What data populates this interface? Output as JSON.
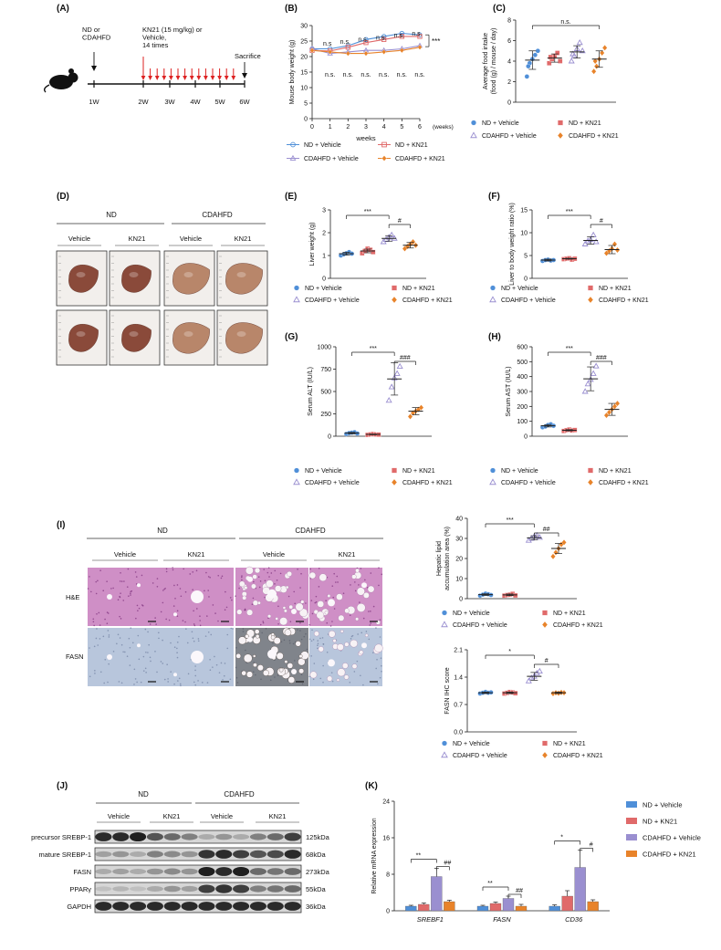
{
  "panel_labels": [
    "(A)",
    "(B)",
    "(C)",
    "(D)",
    "(E)",
    "(F)",
    "(G)",
    "(H)",
    "(I)",
    "(J)",
    "(K)"
  ],
  "colors": {
    "nd_vehicle": "#4f8fd8",
    "nd_kn21": "#e06a6a",
    "cdahfd_vehicle": "#9a8fd0",
    "cdahfd_kn21": "#e8832a",
    "liver_dark": "#8a4a3a",
    "liver_light": "#b8866a",
    "he_pink": "#cf8fc6",
    "ihc_blue": "#b8c6dc"
  },
  "legend": {
    "nd_vehicle": "ND + Vehicle",
    "nd_kn21": "ND + KN21",
    "cdahfd_vehicle": "CDAHFD + Vehicle",
    "cdahfd_kn21": "CDAHFD + KN21"
  },
  "panel_a": {
    "start_label": "ND or\nCDAHFD",
    "treatment_label": "KN21 (15 mg/kg) or\nVehicle,\n14 times",
    "end_label": "Sacrifice",
    "week_labels": [
      "1W",
      "2W",
      "3W",
      "4W",
      "5W",
      "6W"
    ],
    "mouse_icon": "mouse-icon"
  },
  "panel_d": {
    "group_labels": [
      "ND",
      "CDAHFD"
    ],
    "sub_labels": [
      "Vehicle",
      "KN21",
      "Vehicle",
      "KN21"
    ]
  },
  "panel_i": {
    "group_labels": [
      "ND",
      "CDAHFD"
    ],
    "sub_labels": [
      "Vehicle",
      "KN21",
      "Vehicle",
      "KN21"
    ],
    "row_labels": [
      "H&E",
      "FASN"
    ]
  },
  "panel_j": {
    "group_labels": [
      "ND",
      "CDAHFD"
    ],
    "sub_labels": [
      "Vehicle",
      "KN21",
      "Vehicle",
      "KN21"
    ],
    "rows": [
      {
        "name": "precursor SREBP-1",
        "size": "125kDa",
        "intensity": [
          0.9,
          0.9,
          0.95,
          0.7,
          0.6,
          0.5,
          0.3,
          0.4,
          0.3,
          0.5,
          0.6,
          0.8
        ]
      },
      {
        "name": "mature SREBP-1",
        "size": "68kDa",
        "intensity": [
          0.35,
          0.4,
          0.3,
          0.5,
          0.45,
          0.4,
          0.85,
          0.9,
          0.8,
          0.7,
          0.75,
          0.9
        ]
      },
      {
        "name": "FASN",
        "size": "273kDa",
        "intensity": [
          0.3,
          0.35,
          0.3,
          0.4,
          0.45,
          0.4,
          0.95,
          0.9,
          0.95,
          0.6,
          0.55,
          0.6
        ]
      },
      {
        "name": "PPARγ",
        "size": "55kDa",
        "intensity": [
          0.2,
          0.25,
          0.2,
          0.3,
          0.4,
          0.35,
          0.8,
          0.85,
          0.8,
          0.5,
          0.55,
          0.6
        ]
      },
      {
        "name": "GAPDH",
        "size": "36kDa",
        "intensity": [
          0.9,
          0.9,
          0.9,
          0.9,
          0.9,
          0.9,
          0.9,
          0.9,
          0.9,
          0.9,
          0.9,
          0.9
        ]
      }
    ]
  },
  "chart_data": [
    {
      "id": "B",
      "type": "line",
      "ylabel": "Mouse body weight (g)",
      "xlabel": "weeks",
      "x_unit": "(weeks)",
      "x": [
        0,
        1,
        2,
        3,
        4,
        5,
        6
      ],
      "xlim": [
        0,
        6
      ],
      "ylim": [
        0,
        30
      ],
      "yticks": [
        0,
        5,
        10,
        15,
        20,
        25,
        30
      ],
      "series": [
        {
          "name": "ND + Vehicle",
          "values": [
            22.5,
            22.5,
            23.5,
            25.5,
            26.5,
            27.5,
            27.0
          ]
        },
        {
          "name": "ND + KN21",
          "values": [
            22.0,
            21.8,
            23.0,
            24.5,
            25.5,
            26.5,
            26.5
          ]
        },
        {
          "name": "CDAHFD + Vehicle",
          "values": [
            22.5,
            21.0,
            21.5,
            22.0,
            22.0,
            22.5,
            23.5
          ]
        },
        {
          "name": "CDAHFD + KN21",
          "values": [
            22.0,
            21.5,
            21.0,
            21.0,
            21.5,
            22.0,
            23.0
          ]
        }
      ],
      "annotations_top": [
        "n.s",
        "n.s.",
        "n.s.",
        "n.s.",
        "n.s.",
        "n.s."
      ],
      "annotations_bottom": [
        "n.s.",
        "n.s.",
        "n.s.",
        "n.s.",
        "n.s.",
        "n.s."
      ],
      "significance": "***"
    },
    {
      "id": "C",
      "type": "scatter",
      "ylabel": "Average food intake\n(food (g) / mouse / day)",
      "ylim": [
        0,
        8
      ],
      "yticks": [
        0,
        2,
        4,
        6,
        8
      ],
      "groups": [
        {
          "name": "ND + Vehicle",
          "points": [
            2.5,
            3.8,
            4.2,
            4.6,
            5.0,
            3.5
          ],
          "mean": 4.1,
          "sd": 0.9
        },
        {
          "name": "ND + KN21",
          "points": [
            3.8,
            4.2,
            4.5,
            4.8,
            4.0,
            4.4
          ],
          "mean": 4.3,
          "sd": 0.4
        },
        {
          "name": "CDAHFD + Vehicle",
          "points": [
            4.0,
            4.5,
            5.2,
            5.8,
            5.0,
            4.7
          ],
          "mean": 4.9,
          "sd": 0.6
        },
        {
          "name": "CDAHFD + KN21",
          "points": [
            3.0,
            3.5,
            4.2,
            4.8,
            5.3,
            4.0
          ],
          "mean": 4.2,
          "sd": 0.8
        }
      ],
      "brackets": [
        {
          "from": 0,
          "to": 3,
          "label": "n.s."
        }
      ]
    },
    {
      "id": "E",
      "type": "scatter",
      "ylabel": "Liver weight (g)",
      "ylim": [
        0,
        3
      ],
      "yticks": [
        0,
        1,
        2,
        3
      ],
      "groups": [
        {
          "name": "ND + Vehicle",
          "points": [
            1.0,
            1.05,
            1.1,
            1.15,
            1.08
          ],
          "mean": 1.08,
          "sd": 0.06
        },
        {
          "name": "ND + KN21",
          "points": [
            1.1,
            1.2,
            1.3,
            1.25,
            1.15
          ],
          "mean": 1.2,
          "sd": 0.08
        },
        {
          "name": "CDAHFD + Vehicle",
          "points": [
            1.6,
            1.7,
            1.8,
            1.9,
            1.75
          ],
          "mean": 1.75,
          "sd": 0.12
        },
        {
          "name": "CDAHFD + KN21",
          "points": [
            1.3,
            1.4,
            1.5,
            1.6,
            1.45
          ],
          "mean": 1.45,
          "sd": 0.12
        }
      ],
      "brackets": [
        {
          "from": 0,
          "to": 2,
          "label": "***"
        },
        {
          "from": 2,
          "to": 3,
          "label": "#"
        }
      ]
    },
    {
      "id": "F",
      "type": "scatter",
      "ylabel": "Liver to body weight ratio (%)",
      "ylim": [
        0,
        15
      ],
      "yticks": [
        0,
        5,
        10,
        15
      ],
      "groups": [
        {
          "name": "ND + Vehicle",
          "points": [
            3.8,
            4.0,
            4.1,
            3.9,
            4.0
          ],
          "mean": 4.0,
          "sd": 0.2
        },
        {
          "name": "ND + KN21",
          "points": [
            4.2,
            4.3,
            4.4,
            4.1,
            4.3
          ],
          "mean": 4.3,
          "sd": 0.1
        },
        {
          "name": "CDAHFD + Vehicle",
          "points": [
            7.5,
            8.2,
            8.5,
            9.5,
            8.0
          ],
          "mean": 8.3,
          "sd": 0.8
        },
        {
          "name": "CDAHFD + KN21",
          "points": [
            5.5,
            6.0,
            6.5,
            7.5,
            6.2
          ],
          "mean": 6.3,
          "sd": 0.9
        }
      ],
      "brackets": [
        {
          "from": 0,
          "to": 2,
          "label": "***"
        },
        {
          "from": 2,
          "to": 3,
          "label": "#"
        }
      ]
    },
    {
      "id": "G",
      "type": "scatter",
      "ylabel": "Serum ALT (IU/L)",
      "ylim": [
        0,
        1000
      ],
      "yticks": [
        0,
        250,
        500,
        750,
        1000
      ],
      "groups": [
        {
          "name": "ND + Vehicle",
          "points": [
            25,
            35,
            40,
            45,
            30
          ],
          "mean": 35,
          "sd": 8
        },
        {
          "name": "ND + KN21",
          "points": [
            15,
            20,
            25,
            20,
            18
          ],
          "mean": 20,
          "sd": 4
        },
        {
          "name": "CDAHFD + Vehicle",
          "points": [
            400,
            550,
            650,
            700,
            780
          ],
          "mean": 640,
          "sd": 180
        },
        {
          "name": "CDAHFD + KN21",
          "points": [
            220,
            260,
            280,
            300,
            320
          ],
          "mean": 280,
          "sd": 40
        }
      ],
      "brackets": [
        {
          "from": 0,
          "to": 2,
          "label": "***"
        },
        {
          "from": 2,
          "to": 3,
          "label": "###"
        }
      ]
    },
    {
      "id": "H",
      "type": "scatter",
      "ylabel": "Serum AST (IU/L)",
      "ylim": [
        0,
        600
      ],
      "yticks": [
        0,
        100,
        200,
        300,
        400,
        500,
        600
      ],
      "groups": [
        {
          "name": "ND + Vehicle",
          "points": [
            60,
            65,
            75,
            80,
            70
          ],
          "mean": 70,
          "sd": 8
        },
        {
          "name": "ND + KN21",
          "points": [
            35,
            40,
            45,
            38,
            42
          ],
          "mean": 40,
          "sd": 4
        },
        {
          "name": "CDAHFD + Vehicle",
          "points": [
            300,
            350,
            380,
            420,
            470
          ],
          "mean": 385,
          "sd": 80
        },
        {
          "name": "CDAHFD + KN21",
          "points": [
            140,
            160,
            180,
            200,
            220
          ],
          "mean": 180,
          "sd": 40
        }
      ],
      "brackets": [
        {
          "from": 0,
          "to": 2,
          "label": "***"
        },
        {
          "from": 2,
          "to": 3,
          "label": "###"
        }
      ]
    },
    {
      "id": "I1",
      "type": "scatter",
      "ylabel": "Hepatic lipid\naccumulation area (%)",
      "ylim": [
        0,
        40
      ],
      "yticks": [
        0,
        10,
        20,
        30,
        40
      ],
      "groups": [
        {
          "name": "ND + Vehicle",
          "points": [
            1.5,
            2.0,
            2.5,
            2.2,
            1.8
          ],
          "mean": 2.0,
          "sd": 0.4
        },
        {
          "name": "ND + KN21",
          "points": [
            1.5,
            1.8,
            2.0,
            2.4,
            1.6
          ],
          "mean": 1.9,
          "sd": 0.4
        },
        {
          "name": "CDAHFD + Vehicle",
          "points": [
            29,
            30,
            31,
            31.5,
            30.5
          ],
          "mean": 30.3,
          "sd": 1.0
        },
        {
          "name": "CDAHFD + KN21",
          "points": [
            21,
            23,
            25,
            27,
            28
          ],
          "mean": 25,
          "sd": 2.5
        }
      ],
      "brackets": [
        {
          "from": 0,
          "to": 2,
          "label": "***"
        },
        {
          "from": 2,
          "to": 3,
          "label": "##"
        }
      ]
    },
    {
      "id": "I2",
      "type": "scatter",
      "ylabel": "FASN IHC score",
      "ylim": [
        0,
        2.1
      ],
      "yticks": [
        0.0,
        0.7,
        1.4,
        2.1
      ],
      "groups": [
        {
          "name": "ND + Vehicle",
          "points": [
            0.98,
            1.0,
            1.02,
            1.0,
            1.01
          ],
          "mean": 1.0,
          "sd": 0.02
        },
        {
          "name": "ND + KN21",
          "points": [
            0.98,
            1.0,
            1.02,
            1.01,
            0.99
          ],
          "mean": 1.0,
          "sd": 0.02
        },
        {
          "name": "CDAHFD + Vehicle",
          "points": [
            1.3,
            1.38,
            1.42,
            1.5,
            1.55
          ],
          "mean": 1.42,
          "sd": 0.1
        },
        {
          "name": "CDAHFD + KN21",
          "points": [
            0.98,
            1.0,
            0.99,
            1.01,
            1.0
          ],
          "mean": 1.0,
          "sd": 0.02
        }
      ],
      "brackets": [
        {
          "from": 0,
          "to": 2,
          "label": "*"
        },
        {
          "from": 2,
          "to": 3,
          "label": "#"
        }
      ]
    },
    {
      "id": "K",
      "type": "bar",
      "ylabel": "Relative mRNA expression",
      "ylim": [
        0,
        24
      ],
      "yticks": [
        0,
        8,
        16,
        24
      ],
      "categories": [
        "SREBF1",
        "FASN",
        "CD36"
      ],
      "series": [
        {
          "name": "ND + Vehicle",
          "values": [
            1.0,
            1.0,
            1.0
          ],
          "err": [
            0.2,
            0.2,
            0.3
          ]
        },
        {
          "name": "ND + KN21",
          "values": [
            1.4,
            1.6,
            3.2
          ],
          "err": [
            0.3,
            0.3,
            1.2
          ]
        },
        {
          "name": "CDAHFD + Vehicle",
          "values": [
            7.5,
            2.7,
            9.5
          ],
          "err": [
            1.8,
            0.5,
            3.8
          ]
        },
        {
          "name": "CDAHFD + KN21",
          "values": [
            2.0,
            1.0,
            2.0
          ],
          "err": [
            0.3,
            0.4,
            0.4
          ]
        }
      ],
      "significance": [
        [
          "**",
          "##"
        ],
        [
          "**",
          "##"
        ],
        [
          "*",
          "#"
        ]
      ]
    }
  ]
}
